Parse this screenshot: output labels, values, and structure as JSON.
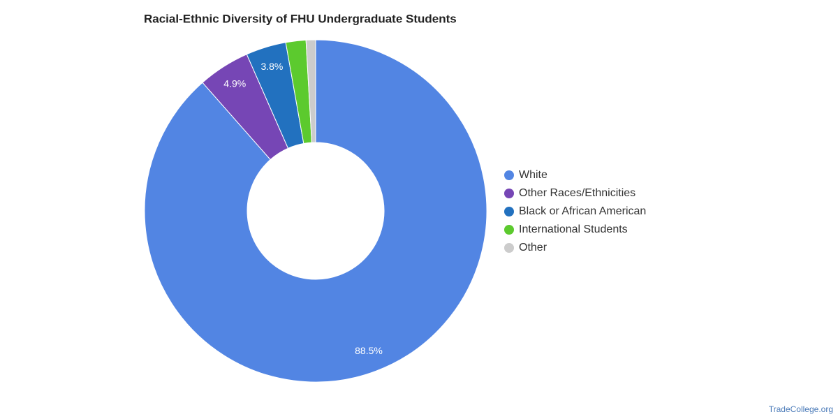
{
  "chart_data": {
    "type": "donut",
    "title": "Racial-Ethnic Diversity of FHU Undergraduate Students",
    "categories": [
      "White",
      "Other Races/Ethnicities",
      "Black or African American",
      "International Students",
      "Other"
    ],
    "values": [
      88.5,
      4.9,
      3.8,
      1.9,
      0.9
    ],
    "value_labels": [
      "88.5%",
      "4.9%",
      "3.8%",
      null,
      null
    ],
    "colors": [
      "#5285e3",
      "#7646b5",
      "#2271bf",
      "#5cca2e",
      "#cccccc"
    ],
    "legend": "right",
    "source": "TradeCollege.org"
  }
}
